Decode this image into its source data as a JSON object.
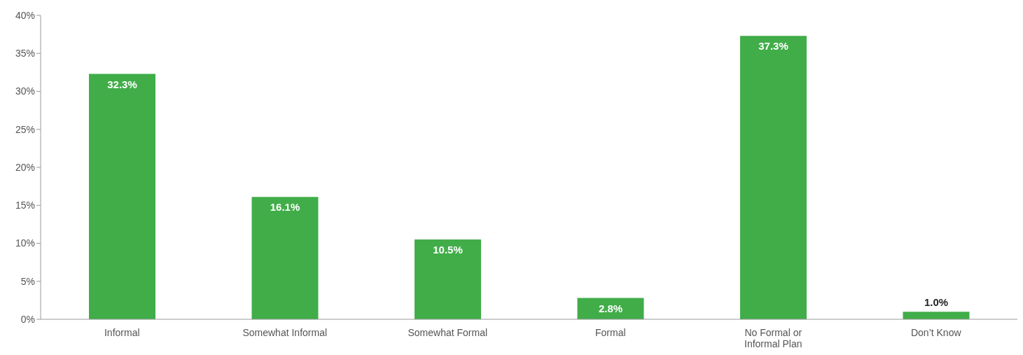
{
  "chart_data": {
    "type": "bar",
    "categories": [
      "Informal",
      "Somewhat Informal",
      "Somewhat Formal",
      "Formal",
      "No Formal or Informal Plan",
      "Don’t Know"
    ],
    "values": [
      32.3,
      16.1,
      10.5,
      2.8,
      37.3,
      1.0
    ],
    "value_labels": [
      "32.3%",
      "16.1%",
      "10.5%",
      "2.8%",
      "37.3%",
      "1.0%"
    ],
    "color": "#41ad49",
    "ylim": [
      0,
      40
    ],
    "yticks": [
      {
        "value": 0,
        "label": "0%"
      },
      {
        "value": 5,
        "label": "5%"
      },
      {
        "value": 10,
        "label": "10%"
      },
      {
        "value": 15,
        "label": "15%"
      },
      {
        "value": 20,
        "label": "20%"
      },
      {
        "value": 25,
        "label": "25%"
      },
      {
        "value": 30,
        "label": "30%"
      },
      {
        "value": 35,
        "label": "35%"
      },
      {
        "value": 40,
        "label": "40%"
      }
    ],
    "grid": false,
    "legend": false
  }
}
